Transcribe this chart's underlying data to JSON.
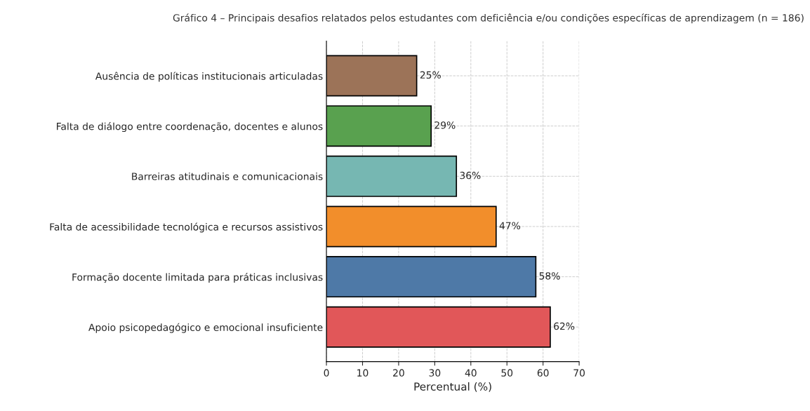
{
  "chart_data": {
    "type": "bar",
    "orientation": "horizontal",
    "title": "Gráfico 4 – Principais desafios relatados pelos estudantes com deficiência e/ou condições específicas de aprendizagem (n = 186)",
    "xlabel": "Percentual (%)",
    "categories": [
      "Ausência de políticas institucionais articuladas",
      "Falta de diálogo entre coordenação, docentes e alunos",
      "Barreiras atitudinais e comunicacionais",
      "Falta de acessibilidade tecnológica e recursos assistivos",
      "Formação docente limitada para práticas inclusivas",
      "Apoio psicopedagógico e emocional insuficiente"
    ],
    "values": [
      25,
      29,
      36,
      47,
      58,
      62
    ],
    "value_labels": [
      "25%",
      "29%",
      "36%",
      "47%",
      "58%",
      "62%"
    ],
    "colors": [
      "#9c7358",
      "#59a14f",
      "#76b7b2",
      "#f28e2b",
      "#4e79a7",
      "#e15759"
    ],
    "xlim": [
      0,
      70
    ],
    "xticks": [
      0,
      10,
      20,
      30,
      40,
      50,
      60,
      70
    ],
    "grid": true
  }
}
